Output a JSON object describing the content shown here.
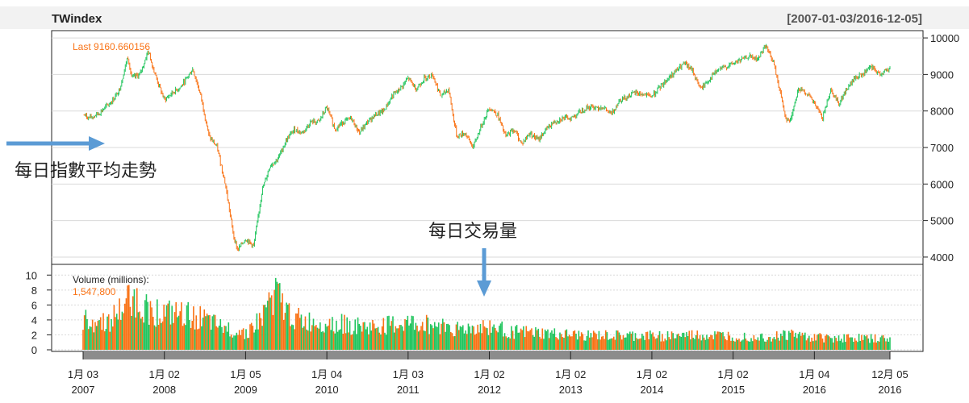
{
  "chart_data": {
    "type": "candlestick",
    "title": "TWindex",
    "date_range": "[2007-01-03/2016-12-05]",
    "last_label": "Last 9160.660156",
    "price": {
      "ylim": [
        3800,
        10200
      ],
      "yticks": [
        4000,
        5000,
        6000,
        7000,
        8000,
        9000,
        10000
      ],
      "ytick_labels": [
        "4000",
        "5000",
        "6000",
        "7000",
        "8000",
        "9000",
        "10000"
      ],
      "grid": true,
      "x": [
        2007.0,
        2007.08,
        2007.2,
        2007.35,
        2007.45,
        2007.55,
        2007.6,
        2007.7,
        2007.8,
        2007.9,
        2008.0,
        2008.1,
        2008.2,
        2008.35,
        2008.45,
        2008.55,
        2008.65,
        2008.75,
        2008.85,
        2008.9,
        2009.0,
        2009.1,
        2009.2,
        2009.3,
        2009.4,
        2009.5,
        2009.6,
        2009.7,
        2009.8,
        2009.9,
        2010.0,
        2010.1,
        2010.2,
        2010.3,
        2010.4,
        2010.5,
        2010.6,
        2010.7,
        2010.8,
        2010.9,
        2011.0,
        2011.1,
        2011.2,
        2011.3,
        2011.4,
        2011.5,
        2011.55,
        2011.6,
        2011.7,
        2011.8,
        2011.9,
        2012.0,
        2012.1,
        2012.2,
        2012.3,
        2012.4,
        2012.5,
        2012.6,
        2012.7,
        2012.8,
        2012.9,
        2013.0,
        2013.2,
        2013.4,
        2013.5,
        2013.6,
        2013.8,
        2014.0,
        2014.2,
        2014.4,
        2014.5,
        2014.6,
        2014.8,
        2015.0,
        2015.2,
        2015.3,
        2015.4,
        2015.5,
        2015.6,
        2015.65,
        2015.7,
        2015.8,
        2015.9,
        2016.0,
        2016.1,
        2016.2,
        2016.3,
        2016.4,
        2016.5,
        2016.6,
        2016.7,
        2016.8,
        2016.93
      ],
      "values": [
        7900,
        7800,
        7950,
        8250,
        8600,
        9500,
        8900,
        9000,
        9650,
        8900,
        8300,
        8500,
        8650,
        9150,
        8400,
        7300,
        7000,
        6000,
        4600,
        4200,
        4500,
        4300,
        5800,
        6500,
        6700,
        7200,
        7500,
        7400,
        7700,
        7700,
        8100,
        7500,
        7700,
        7800,
        7400,
        7700,
        7900,
        8000,
        8400,
        8600,
        8900,
        8600,
        8900,
        9000,
        8400,
        8600,
        7900,
        7300,
        7400,
        7000,
        7600,
        8100,
        7900,
        7300,
        7500,
        7100,
        7400,
        7200,
        7500,
        7700,
        7800,
        7800,
        8100,
        8100,
        7900,
        8300,
        8500,
        8400,
        8900,
        9300,
        9100,
        8600,
        9100,
        9300,
        9500,
        9400,
        9800,
        9300,
        8300,
        7800,
        7700,
        8600,
        8500,
        8200,
        7800,
        8600,
        8200,
        8600,
        8900,
        9000,
        9200,
        9000,
        9160
      ]
    },
    "volume": {
      "label": "Volume (millions):",
      "last_value": "1,547,800",
      "ylim": [
        0,
        11
      ],
      "yticks": [
        0,
        2,
        4,
        6,
        8,
        10
      ],
      "ytick_labels": [
        "0",
        "2",
        "4",
        "6",
        "8",
        "10"
      ],
      "x": [
        2007.0,
        2007.3,
        2007.45,
        2007.6,
        2007.75,
        2008.0,
        2008.4,
        2008.7,
        2009.0,
        2009.2,
        2009.35,
        2009.5,
        2009.7,
        2010.0,
        2010.5,
        2011.0,
        2011.5,
        2011.6,
        2012.0,
        2012.3,
        2012.6,
        2013.0,
        2013.5,
        2014.0,
        2014.5,
        2015.0,
        2015.5,
        2015.7,
        2016.0,
        2016.5,
        2016.93
      ],
      "values": [
        4.2,
        4.0,
        5.5,
        7.8,
        6.0,
        5.2,
        4.8,
        3.2,
        2.5,
        4.5,
        8.5,
        5.5,
        4.0,
        4.0,
        3.2,
        3.8,
        3.5,
        3.0,
        3.3,
        2.6,
        2.4,
        2.1,
        2.0,
        2.0,
        2.1,
        2.0,
        1.9,
        2.3,
        1.8,
        1.7,
        1.55
      ]
    },
    "x_ticks": [
      {
        "x": 2007.0,
        "label": "1月 03",
        "year": "2007"
      },
      {
        "x": 2008.0,
        "label": "1月 02",
        "year": "2008"
      },
      {
        "x": 2009.0,
        "label": "1月 05",
        "year": "2009"
      },
      {
        "x": 2010.0,
        "label": "1月 04",
        "year": "2010"
      },
      {
        "x": 2011.0,
        "label": "1月 03",
        "year": "2011"
      },
      {
        "x": 2012.0,
        "label": "1月 02",
        "year": "2012"
      },
      {
        "x": 2013.0,
        "label": "1月 02",
        "year": "2013"
      },
      {
        "x": 2014.0,
        "label": "1月 02",
        "year": "2014"
      },
      {
        "x": 2015.0,
        "label": "1月 02",
        "year": "2015"
      },
      {
        "x": 2016.0,
        "label": "1月 04",
        "year": "2016"
      },
      {
        "x": 2016.93,
        "label": "12月 05",
        "year": "2016"
      }
    ],
    "annotations": [
      {
        "text": "每日指數平均走勢",
        "points_to": "price"
      },
      {
        "text": "每日交易量",
        "points_to": "volume"
      }
    ],
    "colors": {
      "up": "#22c55e",
      "down": "#f97316",
      "label_orange": "#f97316",
      "arrow": "#5b9bd5",
      "grid": "#d9d9d9",
      "header_bg": "#f2f2f2"
    }
  }
}
